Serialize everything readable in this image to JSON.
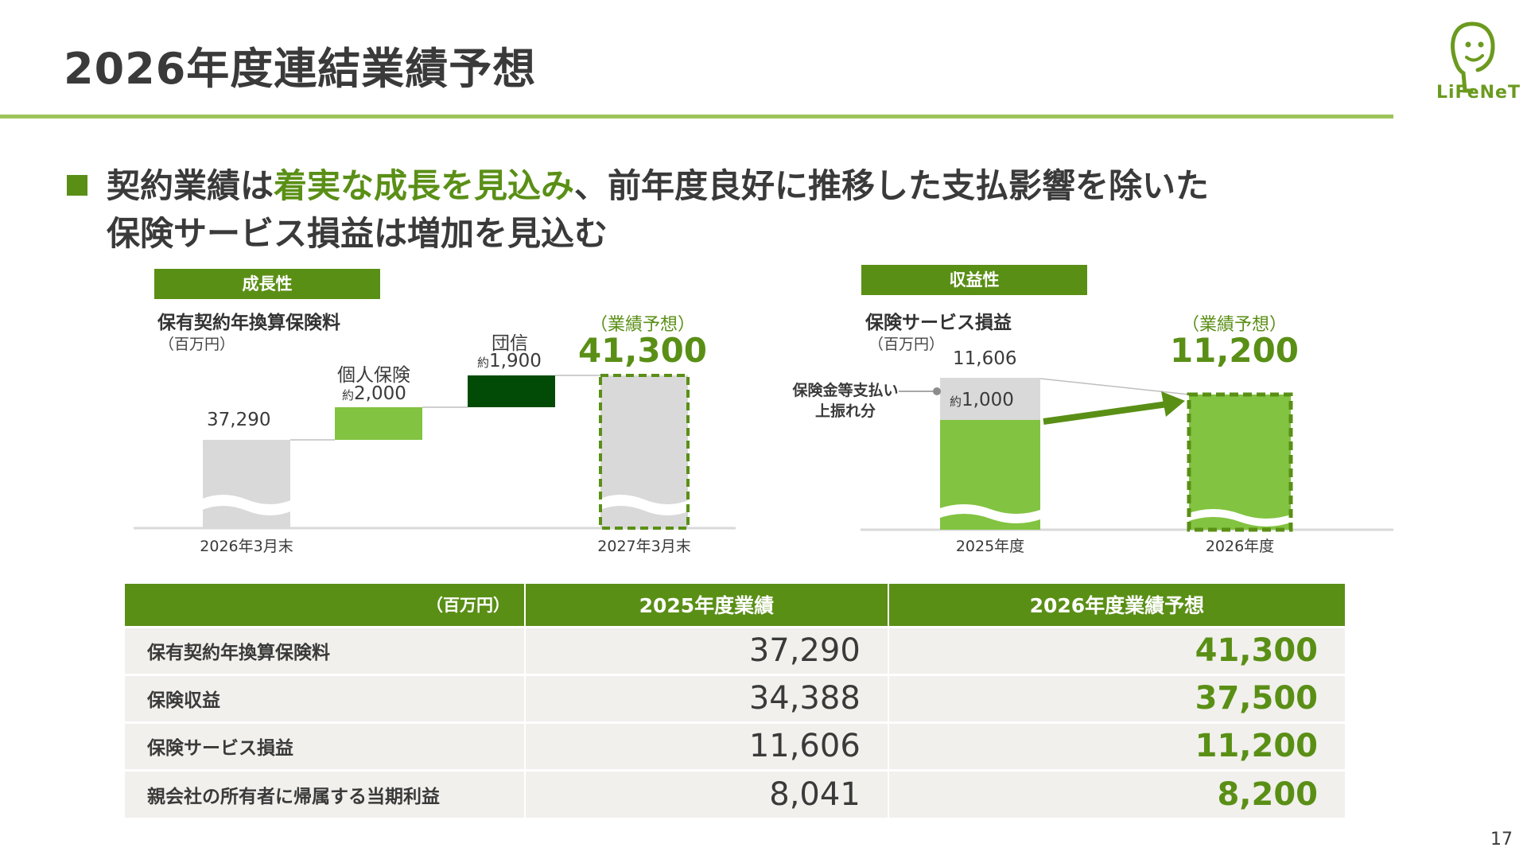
{
  "page": {
    "title": "2026年度連結業績予想",
    "number": "17"
  },
  "logo": {
    "text": "LiFeNeT",
    "icon": "face-mascot-icon"
  },
  "headline": {
    "line1_a": "契約業績は",
    "line1_highlight": "着実な成長を見込み",
    "line1_b": "、前年度良好に推移した支払影響を除いた",
    "line2": "保険サービス損益は増加を見込む"
  },
  "colors": {
    "brand_green": "#5a8f16",
    "light_green": "#82c341",
    "dark_green": "#024b06",
    "gray_bar": "#d9d9d9",
    "rule_green": "#9dc45a"
  },
  "growth_chart": {
    "tag": "成長性",
    "title": "保有契約年換算保険料",
    "unit": "（百万円）",
    "forecast_tag": "（業績予想）",
    "forecast_value": "41,300",
    "start_value_label": "37,290",
    "step1_label": "個人保険",
    "step1_value_prefix": "約",
    "step1_value": "2,000",
    "step2_label": "団信",
    "step2_value_prefix": "約",
    "step2_value": "1,900",
    "x_labels": [
      "2026年3月末",
      "2027年3月末"
    ]
  },
  "profit_chart": {
    "tag": "収益性",
    "title": "保険サービス損益",
    "unit": "（百万円）",
    "forecast_tag": "（業績予想）",
    "forecast_value": "11,200",
    "base_value_label": "11,606",
    "segment_value_prefix": "約",
    "segment_value": "1,000",
    "annotation_line1": "保険金等支払い",
    "annotation_line2": "上振れ分",
    "x_labels": [
      "2025年度",
      "2026年度"
    ]
  },
  "chart_data": [
    {
      "type": "bar",
      "subtype": "waterfall",
      "title": "保有契約年換算保険料",
      "unit": "百万円",
      "categories": [
        "2026年3月末",
        "個人保険",
        "団信",
        "2027年3月末"
      ],
      "values": [
        37290,
        2000,
        1900,
        41300
      ],
      "roles": [
        "total",
        "increase",
        "increase",
        "forecast_total"
      ],
      "axis_break": true
    },
    {
      "type": "bar",
      "subtype": "stacked",
      "title": "保険サービス損益",
      "unit": "百万円",
      "categories": [
        "2025年度",
        "2026年度"
      ],
      "series": [
        {
          "name": "保険金等支払い上振れ分",
          "values": [
            1000,
            0
          ]
        }
      ],
      "totals": [
        11606,
        11200
      ],
      "axis_break": true
    }
  ],
  "table": {
    "unit_header": "（百万円）",
    "col_2025": "2025年度業績",
    "col_2026": "2026年度業績予想",
    "rows": [
      {
        "label": "保有契約年換算保険料",
        "v2025": "37,290",
        "v2026": "41,300"
      },
      {
        "label": "保険収益",
        "v2025": "34,388",
        "v2026": "37,500"
      },
      {
        "label": "保険サービス損益",
        "v2025": "11,606",
        "v2026": "11,200"
      },
      {
        "label": "親会社の所有者に帰属する当期利益",
        "v2025": "8,041",
        "v2026": "8,200"
      }
    ]
  }
}
